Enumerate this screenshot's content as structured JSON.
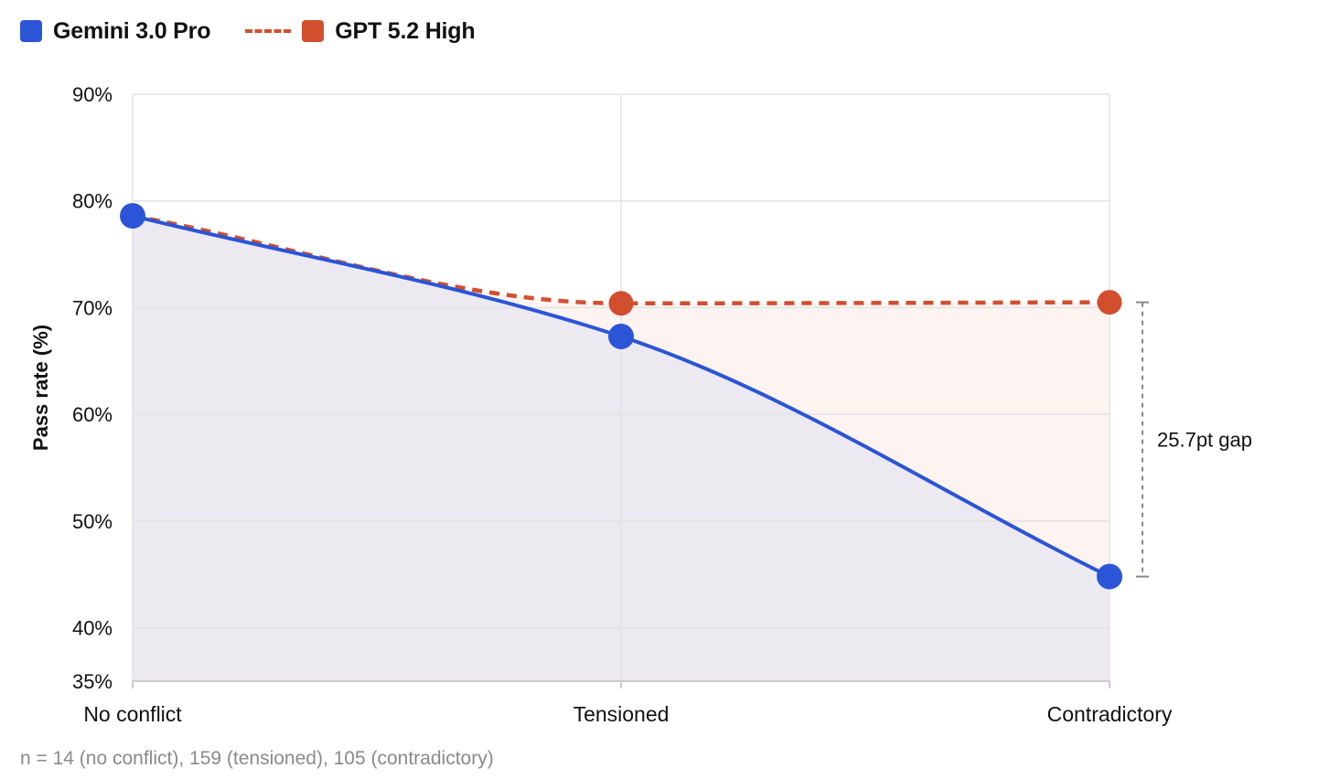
{
  "chart_data": {
    "type": "line",
    "categories": [
      "No conflict",
      "Tensioned",
      "Contradictory"
    ],
    "series": [
      {
        "name": "Gemini 3.0 Pro",
        "values": [
          78.6,
          67.3,
          44.8
        ],
        "color": "#2b55d6",
        "style": "solid"
      },
      {
        "name": "GPT 5.2 High",
        "values": [
          78.6,
          70.4,
          70.5
        ],
        "color": "#d14f2f",
        "style": "dashed"
      }
    ],
    "ylabel": "Pass rate (%)",
    "ylim": [
      35,
      90
    ],
    "yticks": [
      35,
      40,
      50,
      60,
      70,
      80,
      90
    ],
    "ytick_labels": [
      "35%",
      "40%",
      "50%",
      "60%",
      "70%",
      "80%",
      "90%"
    ],
    "grid": true,
    "legend_position": "top-left",
    "annotation": {
      "text": "25.7pt gap",
      "category": "Contradictory",
      "from": 44.8,
      "to": 70.5
    },
    "fill_colors": {
      "under": "#ece9f1",
      "gap": "#fdf3f1"
    },
    "grid_color": "#e3e3e3",
    "axis_color": "#cccccc"
  },
  "footnote": "n = 14 (no conflict), 159 (tensioned), 105 (contradictory)"
}
